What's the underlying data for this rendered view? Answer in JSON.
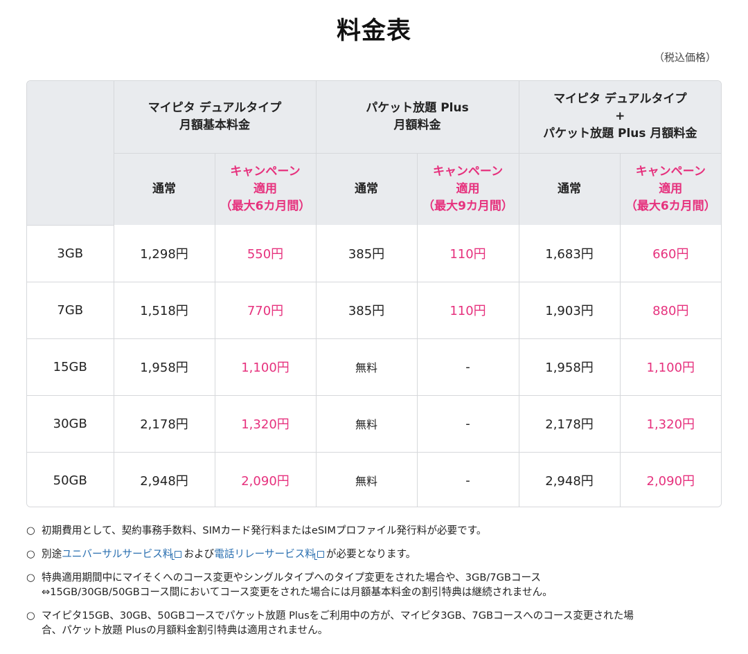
{
  "title": "料金表",
  "tax_note": "（税込価格）",
  "table": {
    "groups": [
      {
        "lines": [
          "マイピタ デュアルタイプ",
          "月額基本料金"
        ]
      },
      {
        "lines": [
          "パケット放題 Plus",
          "月額料金"
        ]
      },
      {
        "lines": [
          "マイピタ デュアルタイプ",
          "+",
          "パケット放題 Plus 月額料金"
        ]
      }
    ],
    "subheaders": [
      {
        "normal": "通常",
        "campaign": [
          "キャンペーン",
          "適用",
          "（最大6カ月間）"
        ]
      },
      {
        "normal": "通常",
        "campaign": [
          "キャンペーン",
          "適用",
          "（最大9カ月間）"
        ]
      },
      {
        "normal": "通常",
        "campaign": [
          "キャンペーン",
          "適用",
          "（最大6カ月間）"
        ]
      }
    ],
    "rows": [
      {
        "gb": "3GB",
        "cells": [
          "1,298円",
          "550円",
          "385円",
          "110円",
          "1,683円",
          "660円"
        ]
      },
      {
        "gb": "7GB",
        "cells": [
          "1,518円",
          "770円",
          "385円",
          "110円",
          "1,903円",
          "880円"
        ]
      },
      {
        "gb": "15GB",
        "cells": [
          "1,958円",
          "1,100円",
          "無料",
          "-",
          "1,958円",
          "1,100円"
        ]
      },
      {
        "gb": "30GB",
        "cells": [
          "2,178円",
          "1,320円",
          "無料",
          "-",
          "2,178円",
          "1,320円"
        ]
      },
      {
        "gb": "50GB",
        "cells": [
          "2,948円",
          "2,090円",
          "無料",
          "-",
          "2,948円",
          "2,090円"
        ]
      }
    ]
  },
  "notes": {
    "mark": "○",
    "n1": "初期費用として、契約事務手数料、SIMカード発行料またはeSIMプロファイル発行料が必要です。",
    "n2": {
      "pre": "別途",
      "link1": "ユニバーサルサービス料",
      "mid": "および",
      "link2": "電話リレーサービス料",
      "post": "が必要となります。"
    },
    "n3": {
      "line1": "特典適用期間中にマイそくへのコース変更やシングルタイプへのタイプ変更をされた場合や、3GB/7GBコース",
      "line2": "⇔15GB/30GB/50GBコース間においてコース変更をされた場合には月額基本料金の割引特典は継続されません。"
    },
    "n4": {
      "line1": "マイピタ15GB、30GB、50GBコースでパケット放題 Plusをご利用中の方が、マイピタ3GB、7GBコースへのコース変更された場",
      "line2": "合、パケット放題 Plusの月額料金割引特典は適用されません。"
    }
  },
  "colors": {
    "accent": "#e6317d",
    "link": "#2a6fb0",
    "header_bg": "#e9ebee",
    "border": "#d6d8db"
  }
}
